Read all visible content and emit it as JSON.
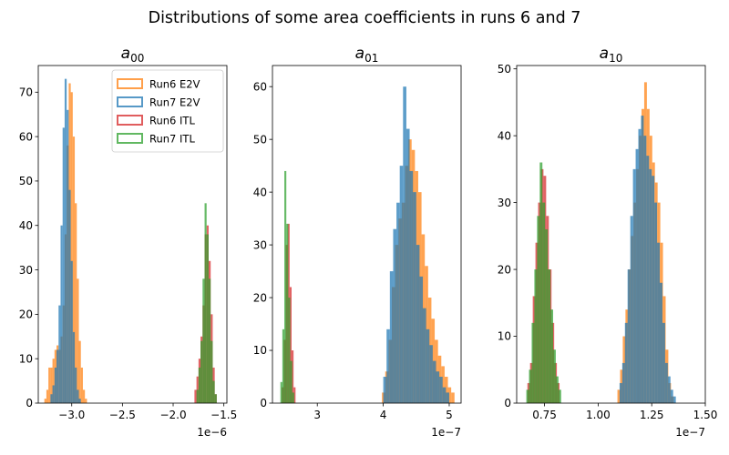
{
  "figure": {
    "suptitle": "Distributions of some area coefficients in runs 6 and 7"
  },
  "legend": {
    "placement": "upper right of first panel",
    "entries": [
      {
        "label": "Run6 E2V",
        "color": "#ff7f0e"
      },
      {
        "label": "Run7 E2V",
        "color": "#1f77b4"
      },
      {
        "label": "Run6 ITL",
        "color": "#d62728"
      },
      {
        "label": "Run7 ITL",
        "color": "#2ca02c"
      }
    ]
  },
  "chart_data": [
    {
      "type": "histogram",
      "title": "a00",
      "title_main": "a",
      "title_sub": "00",
      "offset_text": "1e−6",
      "xlim": [
        -3.33,
        -1.47
      ],
      "ylim": [
        0,
        76
      ],
      "xticks": [
        -3.0,
        -2.5,
        -2.0,
        -1.5
      ],
      "xtick_labels": [
        "−3.0",
        "−2.5",
        "−2.0",
        "−1.5"
      ],
      "yticks": [
        0,
        10,
        20,
        30,
        40,
        50,
        60,
        70
      ],
      "ytick_labels": [
        "0",
        "10",
        "20",
        "30",
        "40",
        "50",
        "60",
        "70"
      ],
      "series": [
        {
          "name": "Run6 E2V",
          "color": "#ff7f0e",
          "x_start": -3.27,
          "bin_width": 0.02,
          "counts": [
            1,
            3,
            8,
            8,
            10,
            12,
            13,
            12,
            15,
            22,
            38,
            58,
            72,
            70,
            60,
            45,
            28,
            14,
            8,
            3,
            1
          ]
        },
        {
          "name": "Run7 E2V",
          "color": "#1f77b4",
          "x_start": -3.21,
          "bin_width": 0.02,
          "counts": [
            2,
            4,
            8,
            12,
            22,
            40,
            62,
            73,
            66,
            48,
            32,
            16,
            8,
            3,
            1
          ]
        },
        {
          "name": "Run6 ITL",
          "color": "#d62728",
          "x_start": -1.79,
          "bin_width": 0.02,
          "counts": [
            3,
            6,
            10,
            15,
            22,
            38,
            40,
            32,
            20,
            8,
            2
          ]
        },
        {
          "name": "Run7 ITL",
          "color": "#2ca02c",
          "x_start": -1.77,
          "bin_width": 0.02,
          "counts": [
            3,
            8,
            14,
            28,
            45,
            38,
            28,
            14,
            5,
            2
          ]
        }
      ]
    },
    {
      "type": "histogram",
      "title": "a01",
      "title_main": "a",
      "title_sub": "01",
      "offset_text": "1e−7",
      "xlim": [
        2.32,
        5.18
      ],
      "ylim": [
        0,
        64
      ],
      "xticks": [
        3,
        4,
        5
      ],
      "xtick_labels": [
        "3",
        "4",
        "5"
      ],
      "yticks": [
        0,
        10,
        20,
        30,
        40,
        50,
        60
      ],
      "ytick_labels": [
        "0",
        "10",
        "20",
        "30",
        "40",
        "50",
        "60"
      ],
      "series": [
        {
          "name": "Run6 E2V",
          "color": "#ff7f0e",
          "x_start": 3.98,
          "bin_width": 0.05,
          "counts": [
            2,
            6,
            12,
            22,
            30,
            35,
            38,
            45,
            50,
            48,
            44,
            40,
            32,
            26,
            20,
            16,
            12,
            9,
            7,
            5,
            3,
            2
          ]
        },
        {
          "name": "Run7 E2V",
          "color": "#1f77b4",
          "x_start": 4.0,
          "bin_width": 0.05,
          "counts": [
            5,
            14,
            25,
            33,
            38,
            45,
            60,
            52,
            44,
            40,
            30,
            24,
            18,
            14,
            11,
            8,
            6,
            5,
            3,
            2
          ]
        },
        {
          "name": "Run6 ITL",
          "color": "#d62728",
          "x_start": 2.46,
          "bin_width": 0.03,
          "counts": [
            3,
            12,
            30,
            34,
            22,
            10,
            3
          ]
        },
        {
          "name": "Run7 ITL",
          "color": "#2ca02c",
          "x_start": 2.44,
          "bin_width": 0.03,
          "counts": [
            4,
            14,
            44,
            34,
            20,
            8,
            2
          ]
        }
      ]
    },
    {
      "type": "histogram",
      "title": "a10",
      "title_main": "a",
      "title_sub": "10",
      "offset_text": "1e−7",
      "xlim": [
        0.62,
        1.5
      ],
      "ylim": [
        0,
        50.5
      ],
      "xticks": [
        0.75,
        1.0,
        1.25,
        1.5
      ],
      "xtick_labels": [
        "0.75",
        "1.00",
        "1.25",
        "1.50"
      ],
      "yticks": [
        0,
        10,
        20,
        30,
        40,
        50
      ],
      "ytick_labels": [
        "0",
        "10",
        "20",
        "30",
        "40",
        "50"
      ],
      "series": [
        {
          "name": "Run6 E2V",
          "color": "#ff7f0e",
          "x_start": 1.09,
          "bin_width": 0.0125,
          "counts": [
            2,
            5,
            10,
            14,
            20,
            25,
            30,
            35,
            40,
            44,
            48,
            44,
            40,
            36,
            33,
            30,
            24,
            16,
            8,
            3,
            1
          ]
        },
        {
          "name": "Run7 E2V",
          "color": "#1f77b4",
          "x_start": 1.1,
          "bin_width": 0.0125,
          "counts": [
            3,
            6,
            12,
            20,
            28,
            35,
            38,
            41,
            43,
            40,
            37,
            35,
            34,
            30,
            24,
            18,
            12,
            6,
            4,
            2,
            1
          ]
        },
        {
          "name": "Run6 ITL",
          "color": "#d62728",
          "x_start": 0.67,
          "bin_width": 0.0125,
          "counts": [
            3,
            6,
            16,
            24,
            30,
            35,
            34,
            28,
            20,
            12,
            6,
            3
          ]
        },
        {
          "name": "Run7 ITL",
          "color": "#2ca02c",
          "x_start": 0.665,
          "bin_width": 0.0125,
          "counts": [
            2,
            5,
            12,
            20,
            28,
            36,
            30,
            26,
            20,
            14,
            8,
            4,
            2
          ]
        }
      ]
    }
  ]
}
